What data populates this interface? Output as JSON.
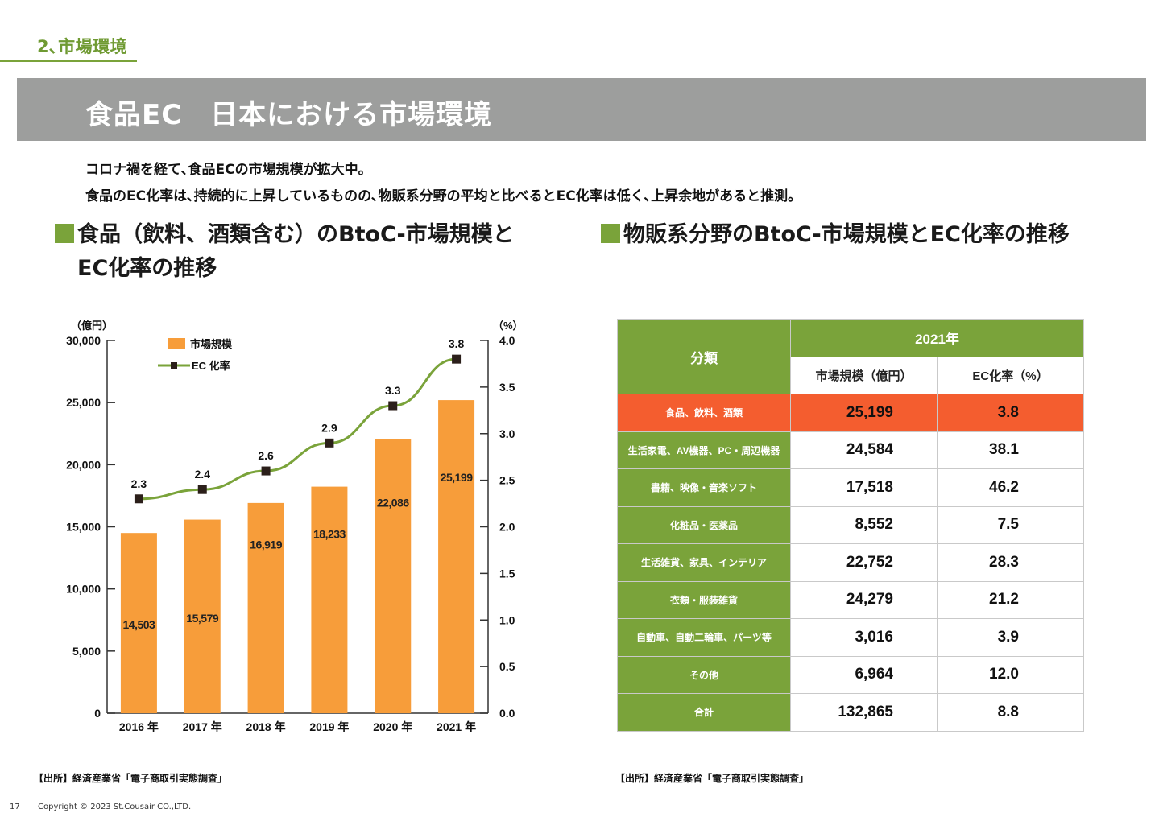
{
  "section_label": "2､市場環境",
  "banner_title": "食品EC　日本における市場環境",
  "lead_lines": [
    "コロナ禍を経て､食品ECの市場規模が拡大中。",
    "食品のEC化率は､持続的に上昇しているものの､物販系分野の平均と比べるとEC化率は低く､上昇余地があると推測。"
  ],
  "left_heading": [
    "食品（飲料、酒類含む）のBtoC-市場規模と",
    "EC化率の推移"
  ],
  "right_heading": "物販系分野のBtoC-市場規模とEC化率の推移",
  "colors": {
    "accent_green": "#7aa33a",
    "bar_orange": "#f79d3a",
    "highlight_red": "#f45d2f",
    "banner_gray": "#9d9e9d"
  },
  "chart_data": {
    "type": "bar",
    "categories": [
      "2016 年",
      "2017 年",
      "2018 年",
      "2019 年",
      "2020 年",
      "2021 年"
    ],
    "series": [
      {
        "name": "市場規模",
        "type": "bar",
        "axis": "left",
        "values": [
          14503,
          15579,
          16919,
          18233,
          22086,
          25199
        ],
        "labels": [
          "14,503",
          "15,579",
          "16,919",
          "18,233",
          "22,086",
          "25,199"
        ]
      },
      {
        "name": "EC 化率",
        "type": "line",
        "axis": "right",
        "values": [
          2.3,
          2.4,
          2.6,
          2.9,
          3.3,
          3.8
        ],
        "labels": [
          "2.3",
          "2.4",
          "2.6",
          "2.9",
          "3.3",
          "3.8"
        ]
      }
    ],
    "left_axis": {
      "unit": "（億円）",
      "ylim": [
        0,
        30000
      ],
      "ticks": [
        "0",
        "5,000",
        "10,000",
        "15,000",
        "20,000",
        "25,000",
        "30,000"
      ]
    },
    "right_axis": {
      "unit": "（%）",
      "ylim": [
        0,
        4.0
      ],
      "ticks": [
        "0.0",
        "0.5",
        "1.0",
        "1.5",
        "2.0",
        "2.5",
        "3.0",
        "3.5",
        "4.0"
      ]
    },
    "legend_position": "top-left",
    "grid": false
  },
  "table": {
    "category_header": "分類",
    "year_header": "2021年",
    "size_header": "市場規模（億円）",
    "rate_header": "EC化率（%）",
    "rows": [
      {
        "category": "食品、飲料、酒類",
        "size": "25,199",
        "rate": "3.8",
        "highlight": true
      },
      {
        "category": "生活家電、AV機器、PC・周辺機器",
        "size": "24,584",
        "rate": "38.1"
      },
      {
        "category": "書籍、映像・音楽ソフト",
        "size": "17,518",
        "rate": "46.2"
      },
      {
        "category": "化粧品・医薬品",
        "size": "8,552",
        "rate": "7.5"
      },
      {
        "category": "生活雑貨、家具、インテリア",
        "size": "22,752",
        "rate": "28.3"
      },
      {
        "category": "衣類・服装雑貨",
        "size": "24,279",
        "rate": "21.2"
      },
      {
        "category": "自動車、自動二輪車、パーツ等",
        "size": "3,016",
        "rate": "3.9"
      },
      {
        "category": "その他",
        "size": "6,964",
        "rate": "12.0"
      },
      {
        "category": "合計",
        "size": "132,865",
        "rate": "8.8"
      }
    ]
  },
  "source_left": "【出所】経済産業省「電子商取引実態調査」",
  "source_right": "【出所】経済産業省「電子商取引実態調査」",
  "page_number": "17",
  "copyright": "Copyright © 2023 St.Cousair CO.,LTD."
}
